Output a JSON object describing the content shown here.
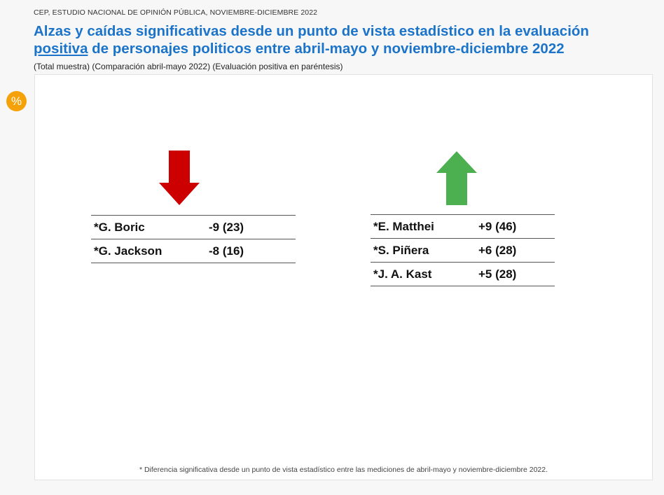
{
  "source": "CEP, ESTUDIO NACIONAL DE OPINIÓN PÚBLICA, NOVIEMBRE-DICIEMBRE 2022",
  "title": {
    "line1": "Alzas y caídas significativas desde un punto de vista estadístico en la evaluación",
    "highlight": "positiva",
    "line2_rest": " de personajes politicos entre abril-mayo y noviembre-diciembre 2022"
  },
  "subtitle": "(Total muestra) (Comparación abril-mayo 2022) (Evaluación positiva en paréntesis)",
  "badge": "%",
  "decreases": {
    "arrow_color": "#cc0000",
    "icon": "down-arrow-icon",
    "rows": [
      {
        "name": "*G. Boric",
        "value": "-9  (23)"
      },
      {
        "name": "*G. Jackson",
        "value": "-8  (16)"
      }
    ]
  },
  "increases": {
    "arrow_color": "#4caf50",
    "icon": "up-arrow-icon",
    "rows": [
      {
        "name": "*E. Matthei",
        "value": "+9  (46)"
      },
      {
        "name": "*S. Piñera",
        "value": "+6  (28)"
      },
      {
        "name": "*J. A. Kast",
        "value": "+5  (28)"
      }
    ]
  },
  "footnote": "* Diferencia significativa desde un punto de vista estadístico entre las mediciones de abril-mayo y noviembre-diciembre 2022.",
  "colors": {
    "title": "#1b74c9",
    "badge": "#f5a20a"
  }
}
